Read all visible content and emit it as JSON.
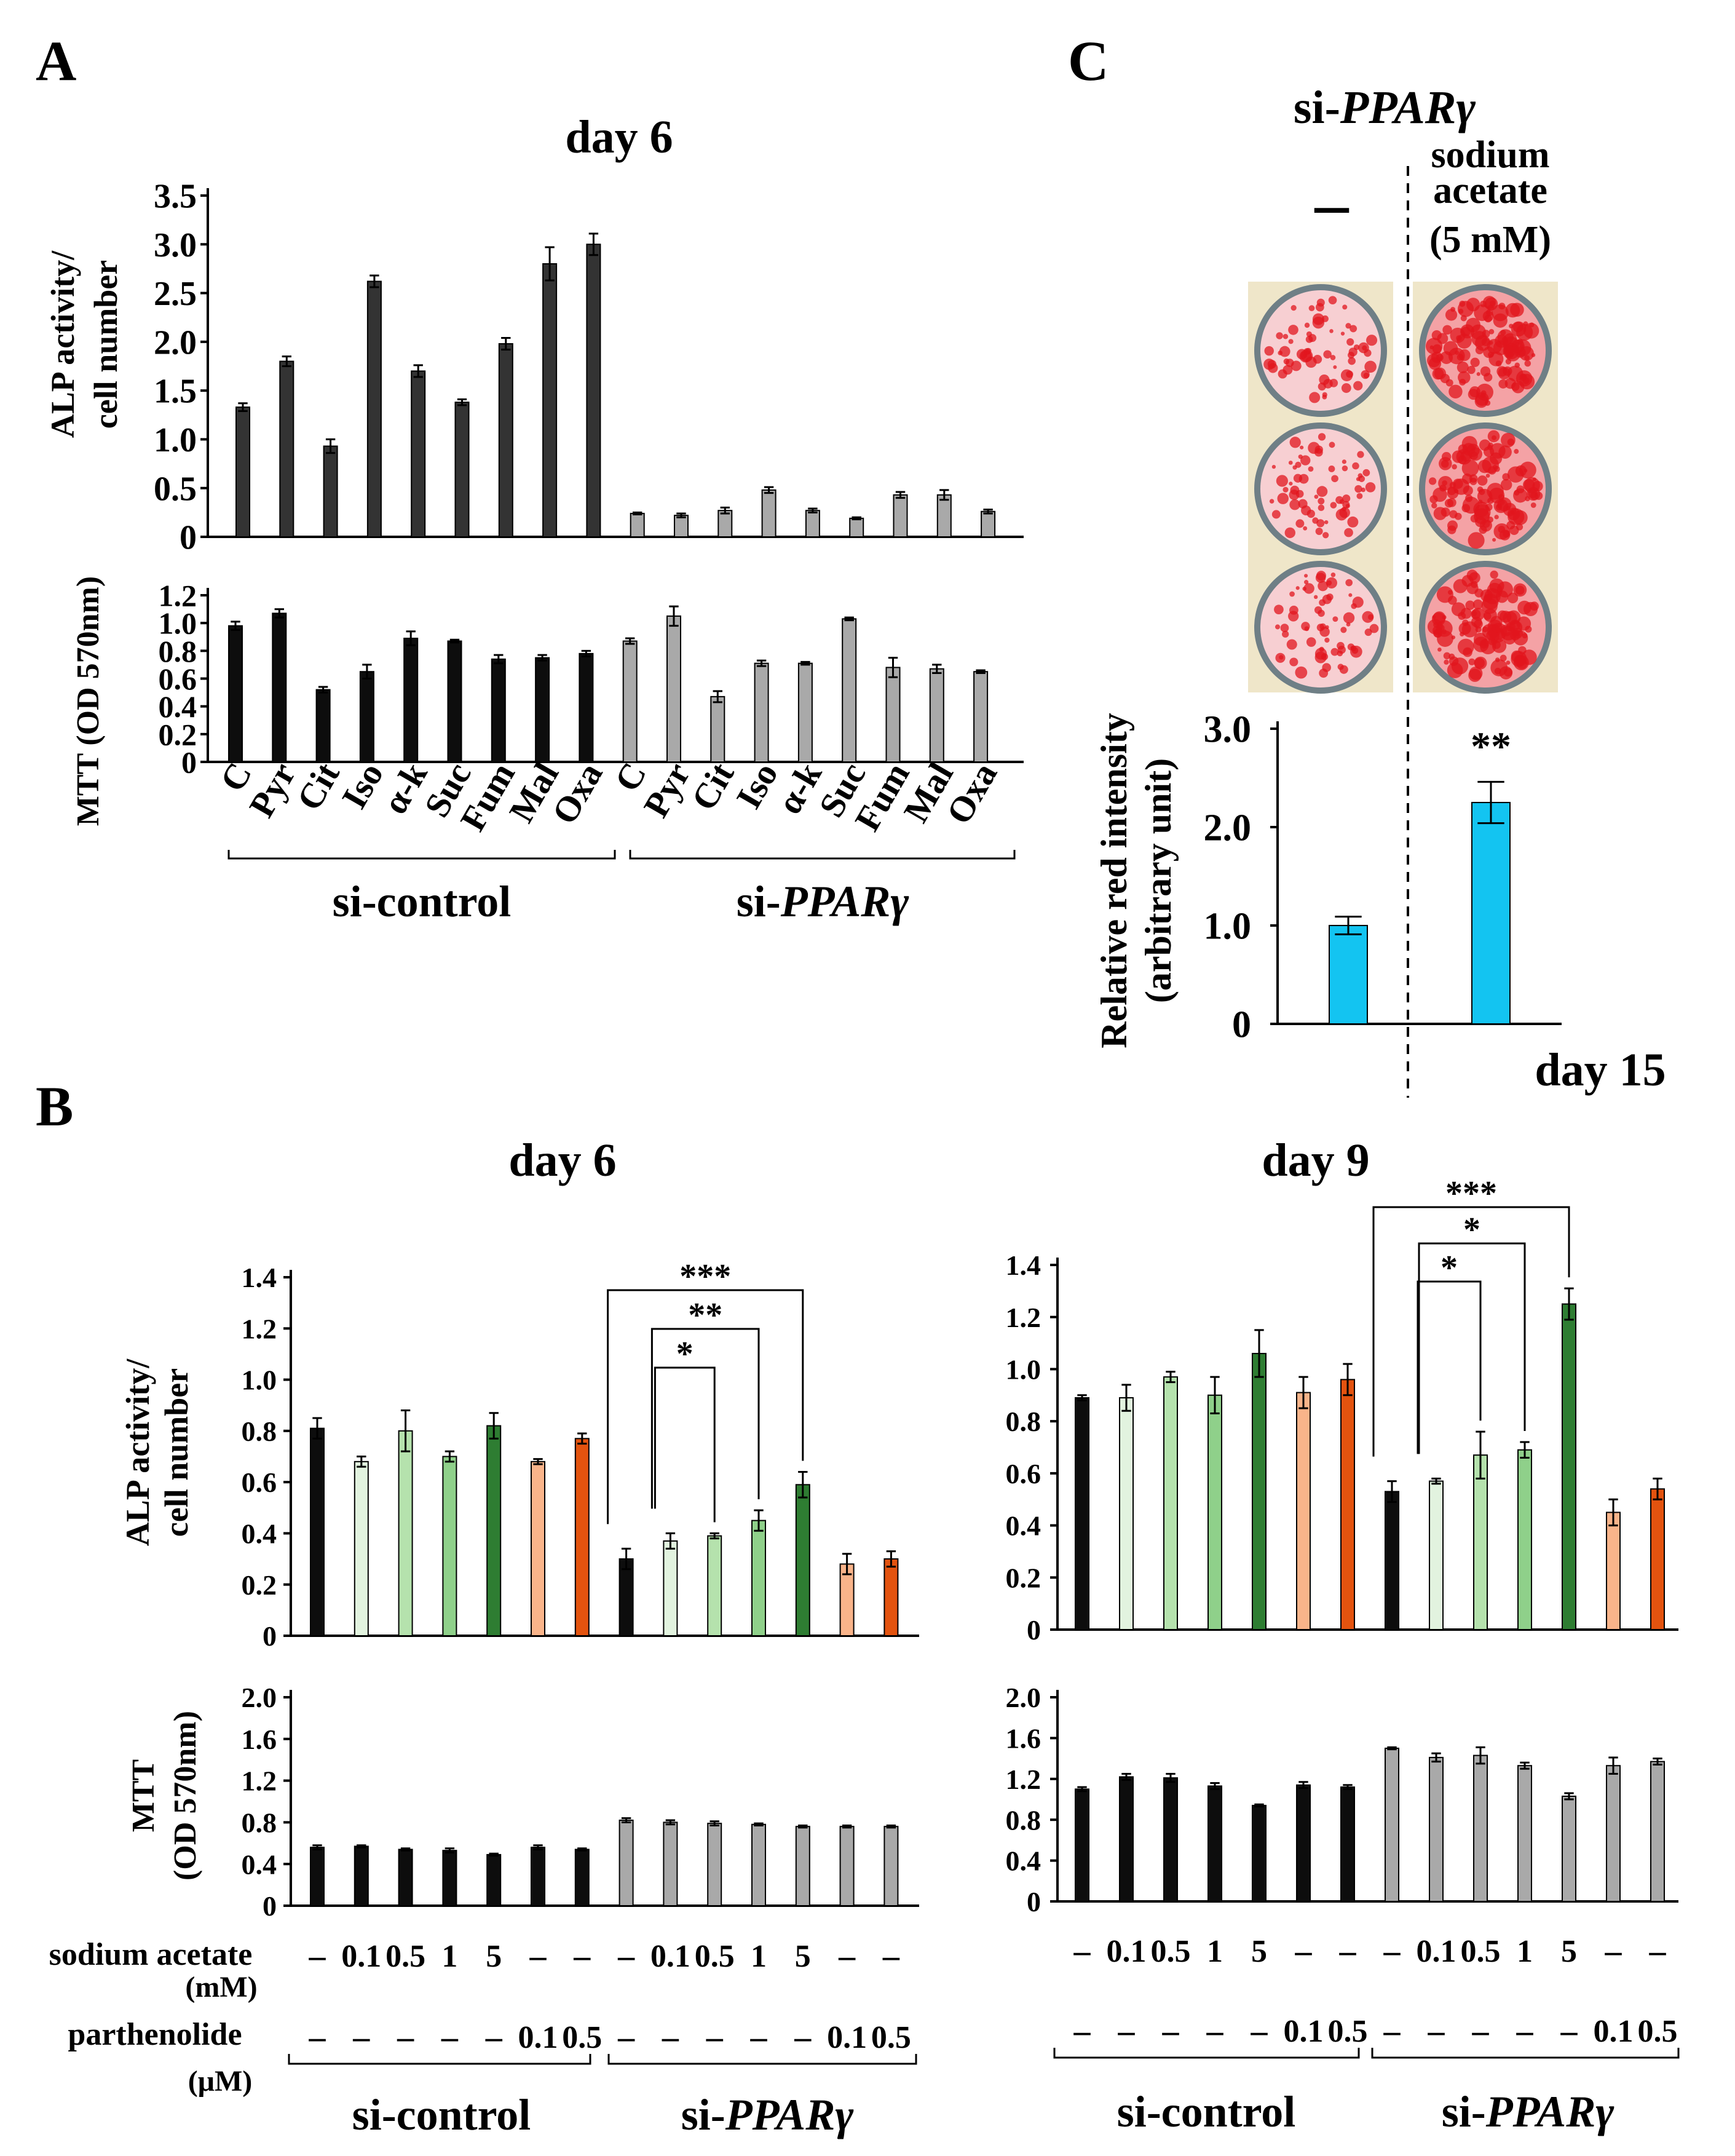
{
  "panels": {
    "A": "A",
    "B": "B",
    "C": "C"
  },
  "common": {
    "dash": "–",
    "si_control": "si-control",
    "si_ppar_prefix": "si-",
    "si_ppar_italic": "PPARγ"
  },
  "colors": {
    "black_bar": "#0d0d0d",
    "dark_bar": "#333333",
    "gray_bar": "#a9a9a9",
    "light_green": "#e2f3df",
    "mid_green": "#b5e2ad",
    "green": "#8fd08a",
    "dark_green": "#2e7d32",
    "peach": "#f9b48a",
    "orange": "#e3530f",
    "cyan": "#13c4f1",
    "stain_red": "#e2161e",
    "stain_bg": "#f7cfd2"
  },
  "chart_data": [
    {
      "id": "A_alp",
      "type": "bar",
      "title": "day 6",
      "ylabel": "ALP activity/ cell number",
      "ylim": [
        0,
        3.5
      ],
      "yticks": [
        0,
        0.5,
        1.0,
        1.5,
        2.0,
        2.5,
        3.0,
        3.5
      ],
      "ytick_labels": [
        "0",
        "0.5",
        "1.0",
        "1.5",
        "2.0",
        "2.5",
        "3.0",
        "3.5"
      ],
      "categories": [
        "C",
        "Pyr",
        "Cit",
        "Iso",
        "α-k",
        "Suc",
        "Fum",
        "Mal",
        "Oxa",
        "C",
        "Pyr",
        "Cit",
        "Iso",
        "α-k",
        "Suc",
        "Fum",
        "Mal",
        "Oxa"
      ],
      "groups": [
        "si-control",
        "si-PPARγ"
      ],
      "values": [
        1.33,
        1.8,
        0.93,
        2.62,
        1.7,
        1.38,
        1.98,
        2.8,
        3.0,
        0.24,
        0.22,
        0.27,
        0.48,
        0.27,
        0.19,
        0.43,
        0.43,
        0.26
      ],
      "errors": [
        0.04,
        0.05,
        0.07,
        0.06,
        0.06,
        0.03,
        0.06,
        0.17,
        0.11,
        0.01,
        0.02,
        0.03,
        0.03,
        0.02,
        0.01,
        0.03,
        0.05,
        0.02
      ]
    },
    {
      "id": "A_mtt",
      "type": "bar",
      "ylabel": "MTT (OD 570nm)",
      "ylim": [
        0,
        1.2
      ],
      "yticks": [
        0,
        0.2,
        0.4,
        0.6,
        0.8,
        1.0,
        1.2
      ],
      "ytick_labels": [
        "0",
        "0.2",
        "0.4",
        "0.6",
        "0.8",
        "1.0",
        "1.2"
      ],
      "values": [
        0.98,
        1.07,
        0.52,
        0.65,
        0.89,
        0.87,
        0.74,
        0.75,
        0.78,
        0.87,
        1.05,
        0.47,
        0.71,
        0.71,
        1.03,
        0.68,
        0.67,
        0.65
      ],
      "errors": [
        0.03,
        0.03,
        0.02,
        0.05,
        0.05,
        0.01,
        0.03,
        0.02,
        0.02,
        0.02,
        0.07,
        0.04,
        0.02,
        0.01,
        0.01,
        0.07,
        0.03,
        0.01
      ]
    },
    {
      "id": "C_red",
      "type": "bar",
      "title": "si-PPARγ",
      "col_label_minus": "–",
      "col_label_lines": [
        "sodium",
        "acetate",
        "(5 mM)"
      ],
      "ylabel_lines": [
        "Relative red intensity",
        "(arbitrary  unit)"
      ],
      "ylim": [
        0,
        3.0
      ],
      "yticks": [
        0,
        1.0,
        2.0,
        3.0
      ],
      "ytick_labels": [
        "0",
        "1.0",
        "2.0",
        "3.0"
      ],
      "categories": [
        "–",
        "sodium acetate (5 mM)"
      ],
      "values": [
        1.0,
        2.25
      ],
      "errors": [
        0.09,
        0.21
      ],
      "significance": [
        "",
        "**"
      ],
      "footer": "day 15"
    },
    {
      "id": "B_d6_alp",
      "type": "bar",
      "title": "day 6",
      "ylabel": "ALP activity/ cell number",
      "ylim": [
        0,
        1.4
      ],
      "yticks": [
        0,
        0.2,
        0.4,
        0.6,
        0.8,
        1.0,
        1.2,
        1.4
      ],
      "ytick_labels": [
        "0",
        "0.2",
        "0.4",
        "0.6",
        "0.8",
        "1.0",
        "1.2",
        "1.4"
      ],
      "values": [
        0.81,
        0.68,
        0.8,
        0.7,
        0.82,
        0.68,
        0.77,
        0.3,
        0.37,
        0.39,
        0.45,
        0.59,
        0.28,
        0.3
      ],
      "errors": [
        0.04,
        0.02,
        0.08,
        0.02,
        0.05,
        0.01,
        0.02,
        0.04,
        0.03,
        0.01,
        0.04,
        0.05,
        0.04,
        0.03
      ],
      "significance": [
        {
          "label": "*",
          "from": 8,
          "to": 9
        },
        {
          "label": "**",
          "from": 8,
          "to": 10
        },
        {
          "label": "***",
          "from": 7,
          "to": 11
        }
      ]
    },
    {
      "id": "B_d6_mtt",
      "type": "bar",
      "ylabel_lines": [
        "MTT",
        "(OD 570nm)"
      ],
      "ylim": [
        0,
        2.0
      ],
      "yticks": [
        0,
        0.4,
        0.8,
        1.2,
        1.6,
        2.0
      ],
      "ytick_labels": [
        "0",
        "0.4",
        "0.8",
        "1.2",
        "1.6",
        "2.0"
      ],
      "values": [
        0.56,
        0.57,
        0.54,
        0.53,
        0.49,
        0.56,
        0.54,
        0.82,
        0.8,
        0.79,
        0.78,
        0.76,
        0.76,
        0.76
      ],
      "errors": [
        0.02,
        0.01,
        0.01,
        0.02,
        0.01,
        0.02,
        0.01,
        0.02,
        0.02,
        0.02,
        0.01,
        0.01,
        0.01,
        0.01
      ],
      "sodium_acetate_label": "sodium acetate",
      "sodium_acetate_unit": "(mM)",
      "sodium_acetate": [
        "–",
        "0.1",
        "0.5",
        "1",
        "5",
        "–",
        "–",
        "–",
        "0.1",
        "0.5",
        "1",
        "5",
        "–",
        "–"
      ],
      "parthenolide_label": "parthenolide",
      "parthenolide_unit": "(μM)",
      "parthenolide": [
        "–",
        "–",
        "–",
        "–",
        "–",
        "0.1",
        "0.5",
        "–",
        "–",
        "–",
        "–",
        "–",
        "0.1",
        "0.5"
      ]
    },
    {
      "id": "B_d9_alp",
      "type": "bar",
      "title": "day 9",
      "ylabel": "ALP activity/ cell number",
      "ylim": [
        0,
        1.4
      ],
      "yticks": [
        0,
        0.2,
        0.4,
        0.6,
        0.8,
        1.0,
        1.2,
        1.4
      ],
      "ytick_labels": [
        "0",
        "0.2",
        "0.4",
        "0.6",
        "0.8",
        "1.0",
        "1.2",
        "1.4"
      ],
      "values": [
        0.89,
        0.89,
        0.97,
        0.9,
        1.06,
        0.91,
        0.96,
        0.53,
        0.57,
        0.67,
        0.69,
        1.25,
        0.45,
        0.54
      ],
      "errors": [
        0.01,
        0.05,
        0.02,
        0.07,
        0.09,
        0.06,
        0.06,
        0.04,
        0.01,
        0.09,
        0.03,
        0.06,
        0.05,
        0.04
      ],
      "significance": [
        {
          "label": "*",
          "from": 8,
          "to": 9
        },
        {
          "label": "*",
          "from": 8,
          "to": 10
        },
        {
          "label": "***",
          "from": 7,
          "to": 11
        }
      ]
    },
    {
      "id": "B_d9_mtt",
      "type": "bar",
      "ylim": [
        0,
        2.0
      ],
      "yticks": [
        0,
        0.4,
        0.8,
        1.2,
        1.6,
        2.0
      ],
      "ytick_labels": [
        "0",
        "0.4",
        "0.8",
        "1.2",
        "1.6",
        "2.0"
      ],
      "values": [
        1.1,
        1.22,
        1.21,
        1.13,
        0.94,
        1.14,
        1.12,
        1.5,
        1.41,
        1.43,
        1.33,
        1.03,
        1.33,
        1.37
      ],
      "errors": [
        0.02,
        0.03,
        0.04,
        0.03,
        0.01,
        0.03,
        0.02,
        0.01,
        0.04,
        0.08,
        0.03,
        0.03,
        0.08,
        0.03
      ],
      "sodium_acetate": [
        "–",
        "0.1",
        "0.5",
        "1",
        "5",
        "–",
        "–",
        "–",
        "0.1",
        "0.5",
        "1",
        "5",
        "–",
        "–"
      ],
      "parthenolide": [
        "–",
        "–",
        "–",
        "–",
        "–",
        "0.1",
        "0.5",
        "–",
        "–",
        "–",
        "–",
        "–",
        "0.1",
        "0.5"
      ]
    }
  ]
}
